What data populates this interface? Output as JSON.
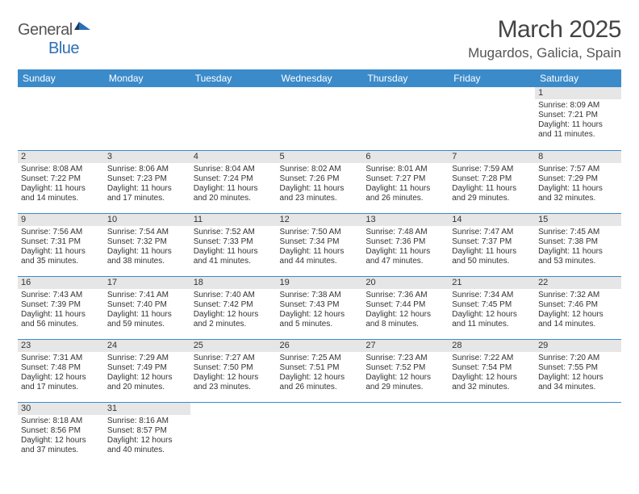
{
  "brand": {
    "part1": "General",
    "part2": "Blue"
  },
  "title": "March 2025",
  "location": "Mugardos, Galicia, Spain",
  "colors": {
    "header_bg": "#3b8bca",
    "header_text": "#ffffff",
    "rule": "#3b8bca",
    "daynum_bg": "#e6e6e6",
    "brand_blue": "#2d6fb6",
    "body_text": "#333333",
    "page_bg": "#ffffff"
  },
  "weekdays": [
    "Sunday",
    "Monday",
    "Tuesday",
    "Wednesday",
    "Thursday",
    "Friday",
    "Saturday"
  ],
  "weeks": [
    [
      null,
      null,
      null,
      null,
      null,
      null,
      {
        "n": "1",
        "sunrise": "8:09 AM",
        "sunset": "7:21 PM",
        "daylight": "11 hours and 11 minutes."
      }
    ],
    [
      {
        "n": "2",
        "sunrise": "8:08 AM",
        "sunset": "7:22 PM",
        "daylight": "11 hours and 14 minutes."
      },
      {
        "n": "3",
        "sunrise": "8:06 AM",
        "sunset": "7:23 PM",
        "daylight": "11 hours and 17 minutes."
      },
      {
        "n": "4",
        "sunrise": "8:04 AM",
        "sunset": "7:24 PM",
        "daylight": "11 hours and 20 minutes."
      },
      {
        "n": "5",
        "sunrise": "8:02 AM",
        "sunset": "7:26 PM",
        "daylight": "11 hours and 23 minutes."
      },
      {
        "n": "6",
        "sunrise": "8:01 AM",
        "sunset": "7:27 PM",
        "daylight": "11 hours and 26 minutes."
      },
      {
        "n": "7",
        "sunrise": "7:59 AM",
        "sunset": "7:28 PM",
        "daylight": "11 hours and 29 minutes."
      },
      {
        "n": "8",
        "sunrise": "7:57 AM",
        "sunset": "7:29 PM",
        "daylight": "11 hours and 32 minutes."
      }
    ],
    [
      {
        "n": "9",
        "sunrise": "7:56 AM",
        "sunset": "7:31 PM",
        "daylight": "11 hours and 35 minutes."
      },
      {
        "n": "10",
        "sunrise": "7:54 AM",
        "sunset": "7:32 PM",
        "daylight": "11 hours and 38 minutes."
      },
      {
        "n": "11",
        "sunrise": "7:52 AM",
        "sunset": "7:33 PM",
        "daylight": "11 hours and 41 minutes."
      },
      {
        "n": "12",
        "sunrise": "7:50 AM",
        "sunset": "7:34 PM",
        "daylight": "11 hours and 44 minutes."
      },
      {
        "n": "13",
        "sunrise": "7:48 AM",
        "sunset": "7:36 PM",
        "daylight": "11 hours and 47 minutes."
      },
      {
        "n": "14",
        "sunrise": "7:47 AM",
        "sunset": "7:37 PM",
        "daylight": "11 hours and 50 minutes."
      },
      {
        "n": "15",
        "sunrise": "7:45 AM",
        "sunset": "7:38 PM",
        "daylight": "11 hours and 53 minutes."
      }
    ],
    [
      {
        "n": "16",
        "sunrise": "7:43 AM",
        "sunset": "7:39 PM",
        "daylight": "11 hours and 56 minutes."
      },
      {
        "n": "17",
        "sunrise": "7:41 AM",
        "sunset": "7:40 PM",
        "daylight": "11 hours and 59 minutes."
      },
      {
        "n": "18",
        "sunrise": "7:40 AM",
        "sunset": "7:42 PM",
        "daylight": "12 hours and 2 minutes."
      },
      {
        "n": "19",
        "sunrise": "7:38 AM",
        "sunset": "7:43 PM",
        "daylight": "12 hours and 5 minutes."
      },
      {
        "n": "20",
        "sunrise": "7:36 AM",
        "sunset": "7:44 PM",
        "daylight": "12 hours and 8 minutes."
      },
      {
        "n": "21",
        "sunrise": "7:34 AM",
        "sunset": "7:45 PM",
        "daylight": "12 hours and 11 minutes."
      },
      {
        "n": "22",
        "sunrise": "7:32 AM",
        "sunset": "7:46 PM",
        "daylight": "12 hours and 14 minutes."
      }
    ],
    [
      {
        "n": "23",
        "sunrise": "7:31 AM",
        "sunset": "7:48 PM",
        "daylight": "12 hours and 17 minutes."
      },
      {
        "n": "24",
        "sunrise": "7:29 AM",
        "sunset": "7:49 PM",
        "daylight": "12 hours and 20 minutes."
      },
      {
        "n": "25",
        "sunrise": "7:27 AM",
        "sunset": "7:50 PM",
        "daylight": "12 hours and 23 minutes."
      },
      {
        "n": "26",
        "sunrise": "7:25 AM",
        "sunset": "7:51 PM",
        "daylight": "12 hours and 26 minutes."
      },
      {
        "n": "27",
        "sunrise": "7:23 AM",
        "sunset": "7:52 PM",
        "daylight": "12 hours and 29 minutes."
      },
      {
        "n": "28",
        "sunrise": "7:22 AM",
        "sunset": "7:54 PM",
        "daylight": "12 hours and 32 minutes."
      },
      {
        "n": "29",
        "sunrise": "7:20 AM",
        "sunset": "7:55 PM",
        "daylight": "12 hours and 34 minutes."
      }
    ],
    [
      {
        "n": "30",
        "sunrise": "8:18 AM",
        "sunset": "8:56 PM",
        "daylight": "12 hours and 37 minutes."
      },
      {
        "n": "31",
        "sunrise": "8:16 AM",
        "sunset": "8:57 PM",
        "daylight": "12 hours and 40 minutes."
      },
      null,
      null,
      null,
      null,
      null
    ]
  ],
  "labels": {
    "sunrise_prefix": "Sunrise: ",
    "sunset_prefix": "Sunset: ",
    "daylight_prefix": "Daylight: "
  }
}
